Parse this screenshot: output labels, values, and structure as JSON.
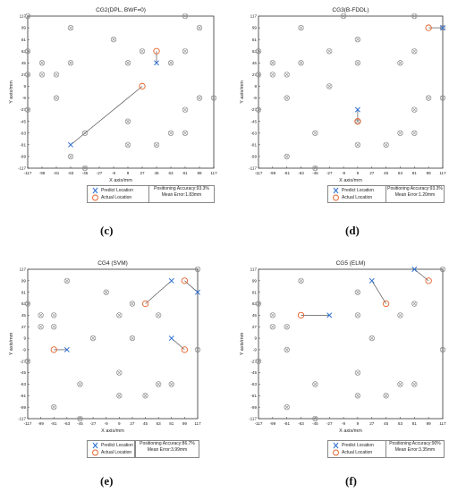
{
  "colors": {
    "predict": "#2f6fd1",
    "actual": "#e4622a",
    "ref": "#8a8a8a",
    "line": "#555555"
  },
  "icons": {
    "predict": "x-cross-marker-icon",
    "actual": "circle-marker-icon",
    "reference": "circled-cross-marker-icon"
  },
  "chart_data": [
    {
      "type": "scatter",
      "title": "CG2(DPL, BWF=0)",
      "xlabel": "X axis/mm",
      "ylabel": "Y axis/mm",
      "xlim": [
        -117,
        117
      ],
      "ylim": [
        -117,
        117
      ],
      "x_ticks": [
        "-117",
        "-99",
        "-81",
        "-63",
        "-45",
        "-27",
        "-9",
        "9",
        "27",
        "45",
        "63",
        "81",
        "99",
        "117"
      ],
      "y_ticks": [
        "117",
        "99",
        "81",
        "63",
        "45",
        "27",
        "9",
        "-9",
        "-27",
        "-45",
        "-63",
        "-81",
        "-99",
        "-117"
      ],
      "reference_points": [
        [
          -117,
          117
        ],
        [
          81,
          117
        ],
        [
          -63,
          99
        ],
        [
          99,
          99
        ],
        [
          -9,
          81
        ],
        [
          -117,
          63
        ],
        [
          27,
          63
        ],
        [
          81,
          63
        ],
        [
          -99,
          45
        ],
        [
          -63,
          45
        ],
        [
          9,
          45
        ],
        [
          -117,
          27
        ],
        [
          -99,
          27
        ],
        [
          -81,
          27
        ],
        [
          63,
          45
        ],
        [
          -81,
          -9
        ],
        [
          -117,
          -27
        ],
        [
          99,
          -9
        ],
        [
          117,
          -9
        ],
        [
          81,
          -27
        ],
        [
          9,
          -45
        ],
        [
          -45,
          -63
        ],
        [
          -63,
          -99
        ],
        [
          81,
          -63
        ],
        [
          63,
          -63
        ],
        [
          9,
          -81
        ],
        [
          45,
          -81
        ],
        [
          -45,
          -117
        ]
      ],
      "pairs": [
        {
          "predict": [
            -63,
            -81
          ],
          "actual": [
            27,
            9
          ]
        },
        {
          "predict": [
            45,
            45
          ],
          "actual": [
            45,
            63
          ]
        }
      ],
      "legend": {
        "predict": "Predict Location",
        "actual": "Actual Location"
      },
      "stats": {
        "line1": "Positioning Accuracy:93.3%",
        "line2": "Mean Error:1.83mm"
      },
      "caption": "(c)"
    },
    {
      "type": "scatter",
      "title": "CG3(B-FDDL)",
      "xlabel": "X axis/mm",
      "ylabel": "Y axis/mm",
      "xlim": [
        -117,
        117
      ],
      "ylim": [
        -117,
        117
      ],
      "x_ticks": [
        "-117",
        "-99",
        "-81",
        "-63",
        "-45",
        "-27",
        "-9",
        "9",
        "27",
        "45",
        "63",
        "81",
        "99",
        "117"
      ],
      "y_ticks": [
        "117",
        "99",
        "81",
        "63",
        "45",
        "27",
        "9",
        "-9",
        "-27",
        "-45",
        "-63",
        "-81",
        "-99",
        "-117"
      ],
      "reference_points": [
        [
          81,
          117
        ],
        [
          -63,
          99
        ],
        [
          -9,
          117
        ],
        [
          9,
          81
        ],
        [
          -117,
          63
        ],
        [
          -27,
          63
        ],
        [
          81,
          63
        ],
        [
          -99,
          45
        ],
        [
          -63,
          45
        ],
        [
          9,
          45
        ],
        [
          -117,
          27
        ],
        [
          -99,
          27
        ],
        [
          -81,
          27
        ],
        [
          63,
          45
        ],
        [
          -27,
          9
        ],
        [
          -81,
          -9
        ],
        [
          -117,
          -27
        ],
        [
          99,
          -9
        ],
        [
          117,
          -9
        ],
        [
          81,
          -27
        ],
        [
          9,
          -45
        ],
        [
          -45,
          -63
        ],
        [
          -81,
          -99
        ],
        [
          63,
          -63
        ],
        [
          81,
          -63
        ],
        [
          9,
          -81
        ],
        [
          45,
          -81
        ],
        [
          -45,
          -117
        ],
        [
          117,
          99
        ]
      ],
      "pairs": [
        {
          "predict": [
            9,
            -27
          ],
          "actual": [
            9,
            -45
          ]
        },
        {
          "predict": [
            117,
            99
          ],
          "actual": [
            99,
            99
          ]
        }
      ],
      "legend": {
        "predict": "Predict Location",
        "actual": "Actual Location"
      },
      "stats": {
        "line1": "Positioning Accuracy:93.3%",
        "line2": "Mean Error:1.20mm"
      },
      "caption": "(d)"
    },
    {
      "type": "scatter",
      "title": "CG4   (SVM)",
      "xlabel": "X axis/mm",
      "ylabel": "Y axis/mm",
      "xlim": [
        -117,
        117
      ],
      "ylim": [
        -117,
        117
      ],
      "x_ticks": [
        "-117",
        "-99",
        "-81",
        "-63",
        "-45",
        "-27",
        "-9",
        "9",
        "27",
        "45",
        "63",
        "81",
        "99",
        "117"
      ],
      "y_ticks": [
        "117",
        "99",
        "81",
        "63",
        "45",
        "27",
        "9",
        "-9",
        "-27",
        "-45",
        "-63",
        "-81",
        "-99",
        "-117"
      ],
      "reference_points": [
        [
          -63,
          99
        ],
        [
          -9,
          81
        ],
        [
          117,
          117
        ],
        [
          -117,
          63
        ],
        [
          27,
          63
        ],
        [
          -99,
          45
        ],
        [
          -81,
          45
        ],
        [
          9,
          45
        ],
        [
          63,
          45
        ],
        [
          -99,
          27
        ],
        [
          -81,
          27
        ],
        [
          27,
          9
        ],
        [
          -27,
          9
        ],
        [
          117,
          -9
        ],
        [
          -117,
          -27
        ],
        [
          -45,
          -63
        ],
        [
          9,
          -45
        ],
        [
          63,
          -63
        ],
        [
          81,
          -63
        ],
        [
          9,
          -81
        ],
        [
          45,
          -81
        ],
        [
          -81,
          -99
        ],
        [
          -45,
          -117
        ]
      ],
      "pairs": [
        {
          "predict": [
            -63,
            -9
          ],
          "actual": [
            -81,
            -9
          ]
        },
        {
          "predict": [
            81,
            99
          ],
          "actual": [
            45,
            63
          ]
        },
        {
          "predict": [
            117,
            81
          ],
          "actual": [
            99,
            99
          ]
        },
        {
          "predict": [
            81,
            9
          ],
          "actual": [
            99,
            -9
          ]
        }
      ],
      "legend": {
        "predict": "Predict Location",
        "actual": "Actual Location"
      },
      "stats": {
        "line1": "Positioning Accuracy:86.7%",
        "line2": "Mean Error:3.99mm"
      },
      "caption": "(e)"
    },
    {
      "type": "scatter",
      "title": "CG5   (ELM)",
      "xlabel": "X axis/mm",
      "ylabel": "Y axis/mm",
      "xlim": [
        -117,
        117
      ],
      "ylim": [
        -117,
        117
      ],
      "x_ticks": [
        "-117",
        "-99",
        "-81",
        "-63",
        "-45",
        "-27",
        "-9",
        "9",
        "27",
        "45",
        "63",
        "81",
        "99",
        "117"
      ],
      "y_ticks": [
        "117",
        "99",
        "81",
        "63",
        "45",
        "27",
        "9",
        "-9",
        "-27",
        "-45",
        "-63",
        "-81",
        "-99",
        "-117"
      ],
      "reference_points": [
        [
          -63,
          99
        ],
        [
          117,
          117
        ],
        [
          9,
          81
        ],
        [
          -117,
          63
        ],
        [
          81,
          63
        ],
        [
          -99,
          45
        ],
        [
          9,
          45
        ],
        [
          63,
          45
        ],
        [
          -99,
          27
        ],
        [
          -81,
          27
        ],
        [
          27,
          9
        ],
        [
          -81,
          -9
        ],
        [
          117,
          -9
        ],
        [
          -117,
          -27
        ],
        [
          9,
          -45
        ],
        [
          -45,
          -63
        ],
        [
          63,
          -63
        ],
        [
          81,
          -63
        ],
        [
          9,
          -81
        ],
        [
          45,
          -81
        ],
        [
          -81,
          -99
        ],
        [
          -45,
          -117
        ]
      ],
      "pairs": [
        {
          "predict": [
            -27,
            45
          ],
          "actual": [
            -63,
            45
          ]
        },
        {
          "predict": [
            27,
            99
          ],
          "actual": [
            45,
            63
          ]
        },
        {
          "predict": [
            81,
            117
          ],
          "actual": [
            99,
            99
          ]
        }
      ],
      "legend": {
        "predict": "Predict Location",
        "actual": "Actual Location"
      },
      "stats": {
        "line1": "Positioning Accuracy:90%",
        "line2": "Mean Error:3.35mm"
      },
      "caption": "(f)"
    }
  ]
}
